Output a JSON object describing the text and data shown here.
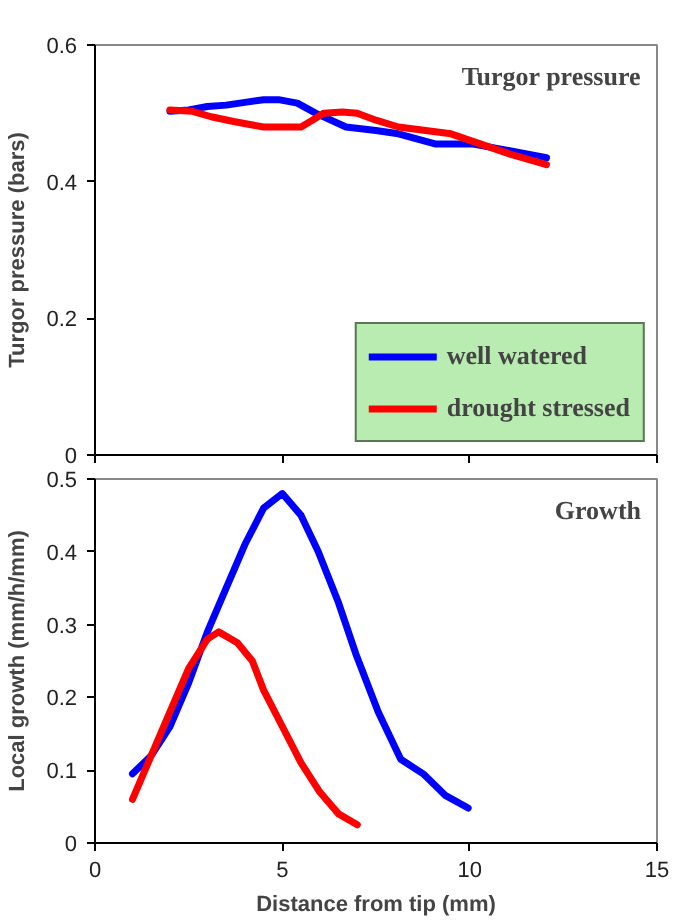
{
  "chart_data": [
    {
      "type": "line",
      "title": "Turgor pressure",
      "ylabel": "Turgor pressure (bars)",
      "xlim": [
        0,
        15
      ],
      "xticks": [
        0,
        5,
        10,
        15
      ],
      "ylim": [
        0,
        0.6
      ],
      "yticks": [
        0,
        0.2,
        0.4,
        0.6
      ],
      "tick_labels": "y",
      "grid": false,
      "legend": "bottom right",
      "line_style": "solid",
      "marker": "none",
      "series": [
        {
          "name": "well watered",
          "color": "#0000ff",
          "x": [
            2,
            2.5,
            3,
            3.5,
            4,
            4.5,
            4.9,
            5.4,
            5.9,
            6.7,
            7.5,
            8.1,
            9.1,
            10.1,
            11.1,
            12.05
          ],
          "values": [
            0.503,
            0.505,
            0.51,
            0.512,
            0.516,
            0.52,
            0.52,
            0.515,
            0.5,
            0.48,
            0.475,
            0.47,
            0.455,
            0.455,
            0.445,
            0.435
          ]
        },
        {
          "name": "drought stressed",
          "color": "#ff0000",
          "x": [
            2,
            2.6,
            3.1,
            3.7,
            4.5,
            5,
            5.5,
            5.8,
            6.1,
            6.6,
            7,
            7.5,
            8.1,
            9.5,
            10.3,
            11.1,
            12.05
          ],
          "values": [
            0.505,
            0.503,
            0.495,
            0.488,
            0.48,
            0.48,
            0.48,
            0.49,
            0.5,
            0.502,
            0.5,
            0.49,
            0.48,
            0.47,
            0.455,
            0.44,
            0.425
          ]
        }
      ]
    },
    {
      "type": "line",
      "title": "Growth",
      "ylabel": "Local growth (mm/h/mm)",
      "xlabel": "Distance from tip (mm)",
      "xlim": [
        0,
        15
      ],
      "xticks": [
        0,
        5,
        10,
        15
      ],
      "ylim": [
        0,
        0.5
      ],
      "yticks": [
        0,
        0.1,
        0.2,
        0.3,
        0.4,
        0.5
      ],
      "grid": false,
      "legend": false,
      "line_style": "solid",
      "marker": "none",
      "series": [
        {
          "color": "#0000ff",
          "x": [
            1,
            1.5,
            2,
            2.5,
            3,
            3.5,
            4,
            4.5,
            5,
            5.5,
            5.96,
            6.5,
            6.96,
            7.56,
            8.16,
            8.76,
            9.36,
            9.96
          ],
          "values": [
            0.095,
            0.12,
            0.16,
            0.22,
            0.29,
            0.35,
            0.41,
            0.46,
            0.48,
            0.45,
            0.4,
            0.33,
            0.26,
            0.18,
            0.115,
            0.095,
            0.065,
            0.048
          ]
        },
        {
          "color": "#ff0000",
          "x": [
            1,
            1.5,
            2,
            2.5,
            3,
            3.3,
            3.8,
            4.2,
            4.5,
            5,
            5.5,
            6,
            6.5,
            7
          ],
          "values": [
            0.06,
            0.12,
            0.18,
            0.24,
            0.28,
            0.29,
            0.275,
            0.25,
            0.21,
            0.16,
            0.11,
            0.07,
            0.04,
            0.025
          ]
        }
      ]
    }
  ]
}
